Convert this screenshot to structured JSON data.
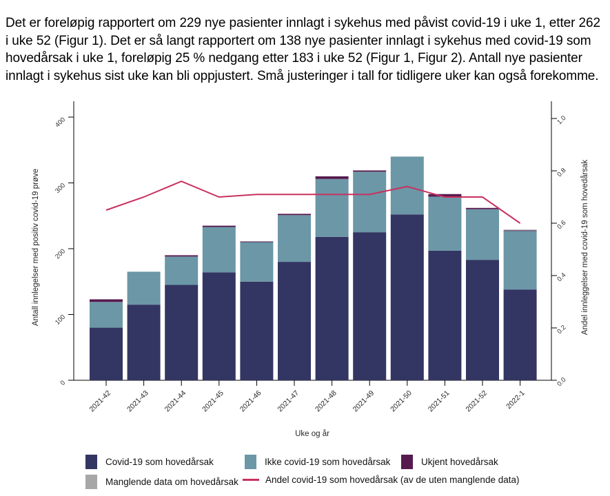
{
  "report": {
    "paragraph": "Det er foreløpig rapportert om 229 nye pasienter innlagt i sykehus med påvist covid-19 i uke 1, etter 262 i uke 52 (Figur 1). Det er så langt rapportert om 138 nye pasienter innlagt i sykehus med covid-19 som hovedårsak i uke 1, foreløpig 25 % nedgang etter 183 i uke 52 (Figur 1, Figur 2). Antall nye pasienter innlagt i sykehus sist uke kan bli oppjustert. Små justeringer i tall for tidligere uker kan også forekomme."
  },
  "chart_data": {
    "type": "bar",
    "stacked": true,
    "xlabel": "Uke og år",
    "ylabel_left": "Antall innlegelser med positiv covid-19 prøve",
    "ylabel_right": "Andel innleggelser med covid-19 som hovedårsak",
    "categories": [
      "2021-42",
      "2021-43",
      "2021-44",
      "2021-45",
      "2021-46",
      "2021-47",
      "2021-48",
      "2021-49",
      "2021-50",
      "2021-51",
      "2021-52",
      "2022-1"
    ],
    "series": [
      {
        "key": "covid-hovedarsak",
        "name": "Covid-19 som hovedårsak",
        "color": "#333562",
        "values": [
          80,
          115,
          145,
          164,
          150,
          180,
          218,
          225,
          252,
          197,
          183,
          138
        ]
      },
      {
        "key": "ikke-covid-hovedarsak",
        "name": "Ikke covid-19 som hovedårsak",
        "color": "#6b97a6",
        "values": [
          39,
          50,
          43,
          69,
          60,
          71,
          88,
          92,
          88,
          82,
          77,
          89
        ]
      },
      {
        "key": "ukjent-hovedarsak",
        "name": "Ukjent hovedårsak",
        "color": "#561a4e",
        "values": [
          4,
          0,
          2,
          2,
          1,
          2,
          4,
          2,
          0,
          4,
          2,
          1
        ]
      },
      {
        "key": "manglende-data",
        "name": "Manglende data om hovedårsak",
        "color": "#a7a7a7",
        "values": [
          0,
          0,
          0,
          0,
          0,
          0,
          0,
          0,
          0,
          0,
          0,
          1
        ]
      }
    ],
    "line_series": {
      "key": "andel-covid-hovedarsak",
      "name": "Andel covid-19 som hovedårsak (av de uten manglende data)",
      "color": "#c9305e",
      "values": [
        0.65,
        0.7,
        0.76,
        0.7,
        0.71,
        0.71,
        0.71,
        0.71,
        0.74,
        0.7,
        0.7,
        0.6
      ]
    },
    "y_left": {
      "min": 0,
      "max": 400,
      "ticks": [
        0,
        100,
        200,
        300,
        400
      ]
    },
    "y_right": {
      "min": 0,
      "max": 1,
      "ticks": [
        0.0,
        0.2,
        0.4,
        0.6,
        0.8,
        1.0
      ],
      "tick_labels": [
        "0.0",
        "0.2",
        "0.4",
        "0.6",
        "0.8",
        "1.0"
      ]
    },
    "grid": false,
    "legend_position": "bottom"
  }
}
